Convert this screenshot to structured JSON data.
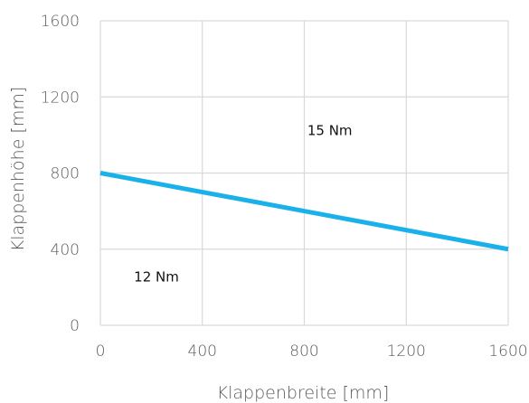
{
  "chart_data": {
    "type": "line",
    "xlabel": "Klappenbreite [mm]",
    "ylabel": "Klappenhöhe [mm]",
    "xlim": [
      0,
      1600
    ],
    "ylim": [
      0,
      1600
    ],
    "x_ticks": [
      0,
      400,
      800,
      1200,
      1600
    ],
    "y_ticks": [
      0,
      400,
      800,
      1200,
      1600
    ],
    "x_tick_labels": [
      "0",
      "400",
      "800",
      "1200",
      "1600"
    ],
    "y_tick_labels": [
      "0",
      "400",
      "800",
      "1200",
      "1600"
    ],
    "grid": true,
    "series": [
      {
        "color": "#1ab1ea",
        "points": [
          {
            "x": 0,
            "y": 800
          },
          {
            "x": 1600,
            "y": 400
          }
        ]
      }
    ],
    "annotations": [
      {
        "text": "15 Nm",
        "x": 900,
        "y": 1000
      },
      {
        "text": "12 Nm",
        "x": 220,
        "y": 230
      }
    ]
  }
}
